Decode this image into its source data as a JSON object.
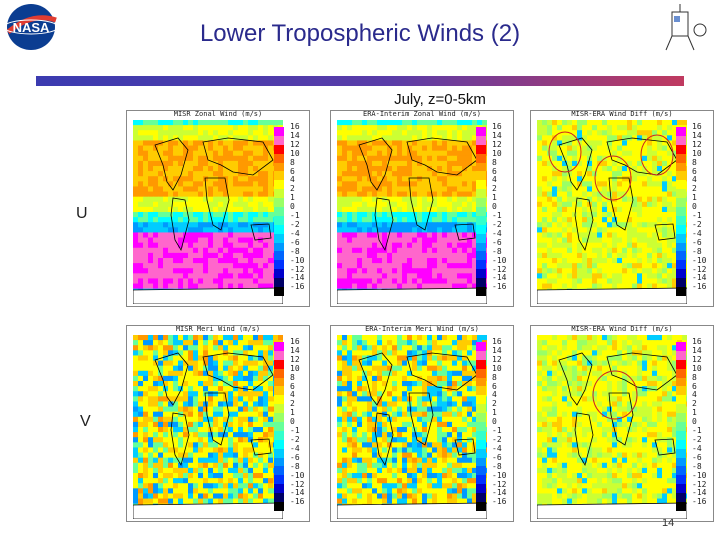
{
  "slide": {
    "title": "Lower Tropospheric Winds (2)",
    "subtitle": "July, z=0-5km",
    "row_u_label": "U",
    "row_v_label": "V",
    "page_number": "14",
    "accent_color": "#2a2a8c"
  },
  "logos": {
    "left": {
      "name": "nasa-logo",
      "text": "NASA"
    },
    "right": {
      "name": "instrument-logo"
    }
  },
  "panels": [
    {
      "id": "misr-zonal",
      "title": "MISR Zonal Wind (m/s)"
    },
    {
      "id": "era-zonal",
      "title": "ERA-Interim Zonal Wind (m/s)"
    },
    {
      "id": "diff-zonal",
      "title": "MISR-ERA Wind Diff (m/s)"
    },
    {
      "id": "misr-meri",
      "title": "MISR Meri Wind (m/s)"
    },
    {
      "id": "era-meri",
      "title": "ERA-Interim Meri Wind (m/s)"
    },
    {
      "id": "diff-meri",
      "title": "MISR-ERA Wind Diff (m/s)"
    }
  ],
  "colorbar_main": {
    "ticks": [
      "16",
      "14",
      "12",
      "10",
      "8",
      "6",
      "4",
      "2",
      "1",
      "0",
      "-1",
      "-2",
      "-4",
      "-6",
      "-8",
      "-10",
      "-12",
      "-14",
      "-16"
    ],
    "colors": [
      "#ff00ff",
      "#ff66cc",
      "#ff0000",
      "#ff6600",
      "#ff9900",
      "#ffcc00",
      "#ffff00",
      "#ccff33",
      "#99ff66",
      "#66ff99",
      "#33ffcc",
      "#00ffff",
      "#00ccff",
      "#0099ff",
      "#0066ff",
      "#0033ff",
      "#0000cc",
      "#000066",
      "#000000"
    ]
  },
  "colorbar_diff": {
    "ticks": [
      "16",
      "14",
      "12",
      "10",
      "8",
      "6",
      "4",
      "2",
      "1",
      "0",
      "-1",
      "-2",
      "-4",
      "-6",
      "-8",
      "-10",
      "-12",
      "-14",
      "-16"
    ],
    "colors": [
      "#ff00ff",
      "#ff66cc",
      "#ff0000",
      "#ff6600",
      "#ff9900",
      "#ffcc00",
      "#ffff00",
      "#ccff33",
      "#99ff66",
      "#66ff99",
      "#33ffcc",
      "#00ffff",
      "#00ccff",
      "#0099ff",
      "#0066ff",
      "#0033ff",
      "#0000cc",
      "#000066",
      "#000000"
    ]
  }
}
